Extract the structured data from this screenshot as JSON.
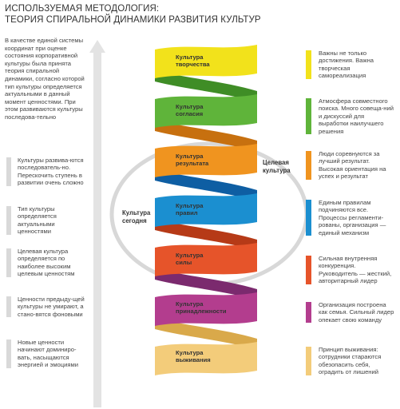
{
  "title": {
    "line1": "ИСПОЛЬЗУЕМАЯ МЕТОДОЛОГИЯ:",
    "line2": "ТЕОРИЯ СПИРАЛЬНОЙ ДИНАМИКИ РАЗВИТИЯ КУЛЬТУР"
  },
  "intro": "В качестве единой системы координат при оценке состояния корпоративной культуры была принята теория спиральной динамики, согласно которой тип культуры определяется актуальными в данный момент ценностями. При этом развиваются культуры последова-тельно",
  "notes": [
    "Культуры развива-ются последователь-но. Перескочить ступень в развитии очень сложно",
    "Тип культуры определяется актуальными ценностями",
    "Целевая культура определяется по наиболее высоким целевым ценностям",
    "Ценности предыду-щей культуры не умирают, а стано-вятся фоновыми",
    "Новые ценности начинают доминиро-вать, насыщаются энергией и эмоциями"
  ],
  "side_labels": {
    "current": "Культура сегодня",
    "target": "Целевая культура"
  },
  "levels": [
    {
      "name": "Культура творчества",
      "color": "#f2e21b",
      "back": "#c9bb10",
      "desc": "Важны не только достижения. Важна творческая самореализация"
    },
    {
      "name": "Культура согласия",
      "color": "#5fb43a",
      "back": "#3f8d26",
      "desc": "Атмосфера совместного поиска. Много совеща-ний и дискуссий для выработки наилучшего решения"
    },
    {
      "name": "Культура результата",
      "color": "#f0941f",
      "back": "#c7700f",
      "desc": "Люди соревнуются за лучший результат. Высокая ориентация на успех и результат"
    },
    {
      "name": "Культура правил",
      "color": "#1b8fd0",
      "back": "#0e5ea3",
      "desc": "Единым правилам подчиняются все. Процессы регламенти-рованы, организация — единый механизм"
    },
    {
      "name": "Культура силы",
      "color": "#e6542a",
      "back": "#b63a17",
      "desc": "Сильная внутренняя конкуренция. Руководитель — жесткий, авторитарный лидер"
    },
    {
      "name": "Культура принадлежности",
      "color": "#b33d8e",
      "back": "#7b2a6e",
      "desc": "Организация построена как семья. Сильный лидер опекает свою команду"
    },
    {
      "name": "Культура выживания",
      "color": "#f3cc7a",
      "back": "#d9a94a",
      "desc": "Принцип выживания: сотрудники стараются обезопасить себя, оградить от лишений"
    }
  ]
}
